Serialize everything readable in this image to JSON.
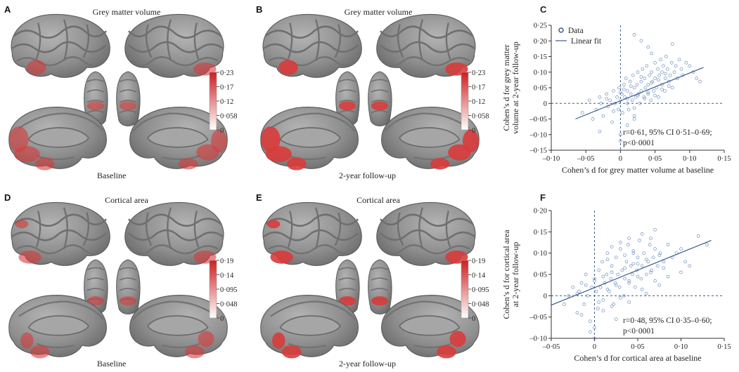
{
  "figure": {
    "panels": [
      {
        "id": "A",
        "label": "A",
        "title": "Grey matter volume",
        "caption": "Baseline",
        "measure": "gmv",
        "stage": "base"
      },
      {
        "id": "B",
        "label": "B",
        "title": "Grey matter volume",
        "caption": "2-year follow-up",
        "measure": "gmv",
        "stage": "fu"
      },
      {
        "id": "D",
        "label": "D",
        "title": "Cortical area",
        "caption": "Baseline",
        "measure": "ca",
        "stage": "base"
      },
      {
        "id": "E",
        "label": "E",
        "title": "Cortical area",
        "caption": "2-year follow-up",
        "measure": "ca",
        "stage": "fu"
      }
    ],
    "colorbars": {
      "gmv": {
        "ticks": [
          "0·23",
          "0·17",
          "0·12",
          "0·058",
          "0"
        ]
      },
      "ca": {
        "ticks": [
          "0·19",
          "0·14",
          "0·095",
          "0·048",
          "0"
        ]
      }
    },
    "colors": {
      "brain_grey": "#8d8d8d",
      "highlight_red": "#d93b3b",
      "point_blue": "#6f8fbf",
      "fit_line": "#3a5a8a"
    }
  },
  "chart_data": [
    {
      "id": "C",
      "label": "C",
      "type": "scatter",
      "xlabel": "Cohen’s d for grey matter volume at baseline",
      "ylabel_lines": [
        "Cohen’s d for grey matter",
        "volume at 2-year follow-up"
      ],
      "xlim": [
        -0.1,
        0.15
      ],
      "ylim": [
        -0.15,
        0.25
      ],
      "xticks": [
        -0.1,
        -0.05,
        0,
        0.05,
        0.1,
        0.15
      ],
      "xtick_labels": [
        "–0·10",
        "–0·05",
        "0",
        "0·05",
        "0·10",
        "0·15"
      ],
      "yticks": [
        -0.15,
        -0.1,
        -0.05,
        0,
        0.05,
        0.1,
        0.15,
        0.2,
        0.25
      ],
      "ytick_labels": [
        "–0·15",
        "–0·10",
        "–0·05",
        "0",
        "0·05",
        "0·10",
        "0·15",
        "0·20",
        "0·25"
      ],
      "legend": {
        "data": "Data",
        "fit": "Linear fit",
        "position": "top-left"
      },
      "fit": {
        "x": [
          -0.065,
          0.12
        ],
        "y": [
          -0.05,
          0.115
        ]
      },
      "annotation": [
        "r=0·61, 95% CI 0·51–0·69;",
        "p<0·0001"
      ],
      "points": {
        "x": [
          -0.055,
          -0.045,
          -0.04,
          -0.035,
          -0.03,
          -0.028,
          -0.025,
          -0.02,
          -0.018,
          -0.015,
          -0.012,
          -0.01,
          -0.008,
          -0.005,
          -0.003,
          -0.002,
          0.0,
          0.0,
          0.002,
          0.003,
          0.005,
          0.006,
          0.008,
          0.01,
          0.01,
          0.012,
          0.014,
          0.015,
          0.017,
          0.018,
          0.02,
          0.02,
          0.022,
          0.024,
          0.025,
          0.026,
          0.028,
          0.03,
          0.03,
          0.032,
          0.034,
          0.035,
          0.036,
          0.038,
          0.04,
          0.04,
          0.042,
          0.044,
          0.045,
          0.046,
          0.048,
          0.05,
          0.05,
          0.052,
          0.054,
          0.055,
          0.056,
          0.058,
          0.06,
          0.06,
          0.062,
          0.064,
          0.065,
          0.066,
          0.068,
          0.07,
          0.072,
          0.074,
          0.075,
          0.078,
          0.08,
          0.082,
          0.085,
          0.088,
          0.09,
          0.095,
          0.1,
          0.105,
          0.11,
          0.115,
          -0.02,
          -0.01,
          0.0,
          0.005,
          0.01,
          0.015,
          0.02,
          0.025,
          0.03,
          0.035,
          0.04,
          0.045,
          0.05,
          0.055,
          0.06,
          0.065,
          0.07,
          0.01,
          0.02,
          0.03,
          0.04,
          -0.03,
          0.0,
          0.02,
          0.045,
          0.075
        ],
        "y": [
          -0.03,
          0.01,
          -0.05,
          -0.02,
          0.02,
          0.0,
          -0.04,
          0.03,
          -0.01,
          0.01,
          -0.06,
          0.04,
          0.0,
          0.02,
          -0.02,
          0.05,
          -0.1,
          0.01,
          0.03,
          -0.03,
          0.06,
          0.02,
          0.08,
          0.0,
          0.04,
          -0.02,
          0.07,
          0.03,
          0.01,
          0.09,
          0.05,
          -0.04,
          0.02,
          0.06,
          0.1,
          0.03,
          0.0,
          0.07,
          0.04,
          0.11,
          0.02,
          0.08,
          0.05,
          0.12,
          0.06,
          0.03,
          0.09,
          0.01,
          0.1,
          0.07,
          0.04,
          0.13,
          0.08,
          0.05,
          0.11,
          0.02,
          0.09,
          0.14,
          0.06,
          0.1,
          0.12,
          0.04,
          0.08,
          0.15,
          0.11,
          0.07,
          0.09,
          0.13,
          0.05,
          0.1,
          0.12,
          0.08,
          0.14,
          0.11,
          0.09,
          0.13,
          0.12,
          0.1,
          0.08,
          0.07,
          0.015,
          -0.025,
          0.035,
          0.045,
          0.015,
          0.055,
          -0.015,
          0.025,
          0.085,
          0.015,
          0.035,
          0.065,
          0.025,
          0.075,
          0.045,
          0.095,
          0.055,
          -0.07,
          -0.05,
          0.2,
          0.18,
          -0.09,
          -0.12,
          0.22,
          0.16,
          0.19
        ]
      }
    },
    {
      "id": "F",
      "label": "F",
      "type": "scatter",
      "xlabel": "Cohen’s d for cortical area at baseline",
      "ylabel_lines": [
        "Cohen’s d for cortical area",
        "at 2-year follow-up"
      ],
      "xlim": [
        -0.05,
        0.15
      ],
      "ylim": [
        -0.1,
        0.2
      ],
      "xticks": [
        -0.05,
        0,
        0.05,
        0.1,
        0.15
      ],
      "xtick_labels": [
        "–0·05",
        "0",
        "0·05",
        "0·10",
        "0·15"
      ],
      "yticks": [
        -0.1,
        -0.05,
        0,
        0.05,
        0.1,
        0.15,
        0.2
      ],
      "ytick_labels": [
        "–0·10",
        "–0·05",
        "0",
        "0·05",
        "0·10",
        "0·15",
        "0·20"
      ],
      "fit": {
        "x": [
          -0.05,
          0.135
        ],
        "y": [
          -0.022,
          0.13
        ]
      },
      "annotation": [
        "r=0·48, 95% CI 0·35–0·60;",
        "p<0·0001"
      ],
      "points": {
        "x": [
          -0.035,
          -0.03,
          -0.025,
          -0.02,
          -0.018,
          -0.015,
          -0.012,
          -0.01,
          -0.008,
          -0.005,
          -0.003,
          0.0,
          0.0,
          0.002,
          0.004,
          0.005,
          0.007,
          0.009,
          0.01,
          0.012,
          0.014,
          0.015,
          0.017,
          0.019,
          0.02,
          0.022,
          0.024,
          0.025,
          0.027,
          0.029,
          0.03,
          0.032,
          0.034,
          0.035,
          0.037,
          0.039,
          0.04,
          0.042,
          0.044,
          0.045,
          0.047,
          0.049,
          0.05,
          0.052,
          0.054,
          0.055,
          0.057,
          0.06,
          0.062,
          0.064,
          0.066,
          0.068,
          0.07,
          0.073,
          0.076,
          0.08,
          0.085,
          0.09,
          0.095,
          0.1,
          0.105,
          0.11,
          0.12,
          0.13,
          -0.02,
          -0.01,
          0.0,
          0.005,
          0.01,
          0.015,
          0.02,
          0.025,
          0.03,
          0.035,
          0.04,
          0.045,
          0.05,
          0.055,
          0.06,
          0.065,
          0.07,
          0.075,
          0.08,
          -0.015,
          0.0,
          0.01,
          0.025,
          0.04,
          0.055,
          0.07,
          0.02,
          0.03,
          0.045,
          0.065,
          -0.005,
          0.015,
          0.035,
          0.05,
          0.085,
          0.1,
          0.075,
          0.06,
          0.02,
          0.04
        ],
        "y": [
          -0.02,
          0.0,
          0.02,
          -0.04,
          0.01,
          0.03,
          -0.02,
          0.05,
          0.0,
          -0.06,
          0.02,
          -0.1,
          0.04,
          0.01,
          -0.03,
          0.06,
          0.02,
          0.08,
          -0.01,
          0.03,
          0.05,
          0.1,
          0.01,
          0.04,
          0.07,
          -0.02,
          0.03,
          0.09,
          0.05,
          0.02,
          0.11,
          0.06,
          0.0,
          0.04,
          0.08,
          0.12,
          0.03,
          0.07,
          0.05,
          0.1,
          0.02,
          0.06,
          0.09,
          0.13,
          0.04,
          0.07,
          0.1,
          0.05,
          0.08,
          0.12,
          0.06,
          0.09,
          0.11,
          0.07,
          0.1,
          0.08,
          0.12,
          0.09,
          0.1,
          0.11,
          0.08,
          0.07,
          0.14,
          0.12,
          0.005,
          0.025,
          0.035,
          -0.015,
          0.045,
          0.015,
          0.055,
          0.025,
          -0.005,
          0.065,
          0.035,
          0.075,
          0.045,
          0.015,
          0.085,
          0.055,
          0.035,
          0.095,
          0.065,
          -0.045,
          -0.075,
          -0.035,
          -0.055,
          0.135,
          0.145,
          0.155,
          0.115,
          0.125,
          0.105,
          0.135,
          -0.085,
          0.085,
          0.095,
          0.075,
          0.045,
          0.055,
          0.025,
          0.005,
          -0.025,
          -0.015
        ]
      }
    }
  ]
}
